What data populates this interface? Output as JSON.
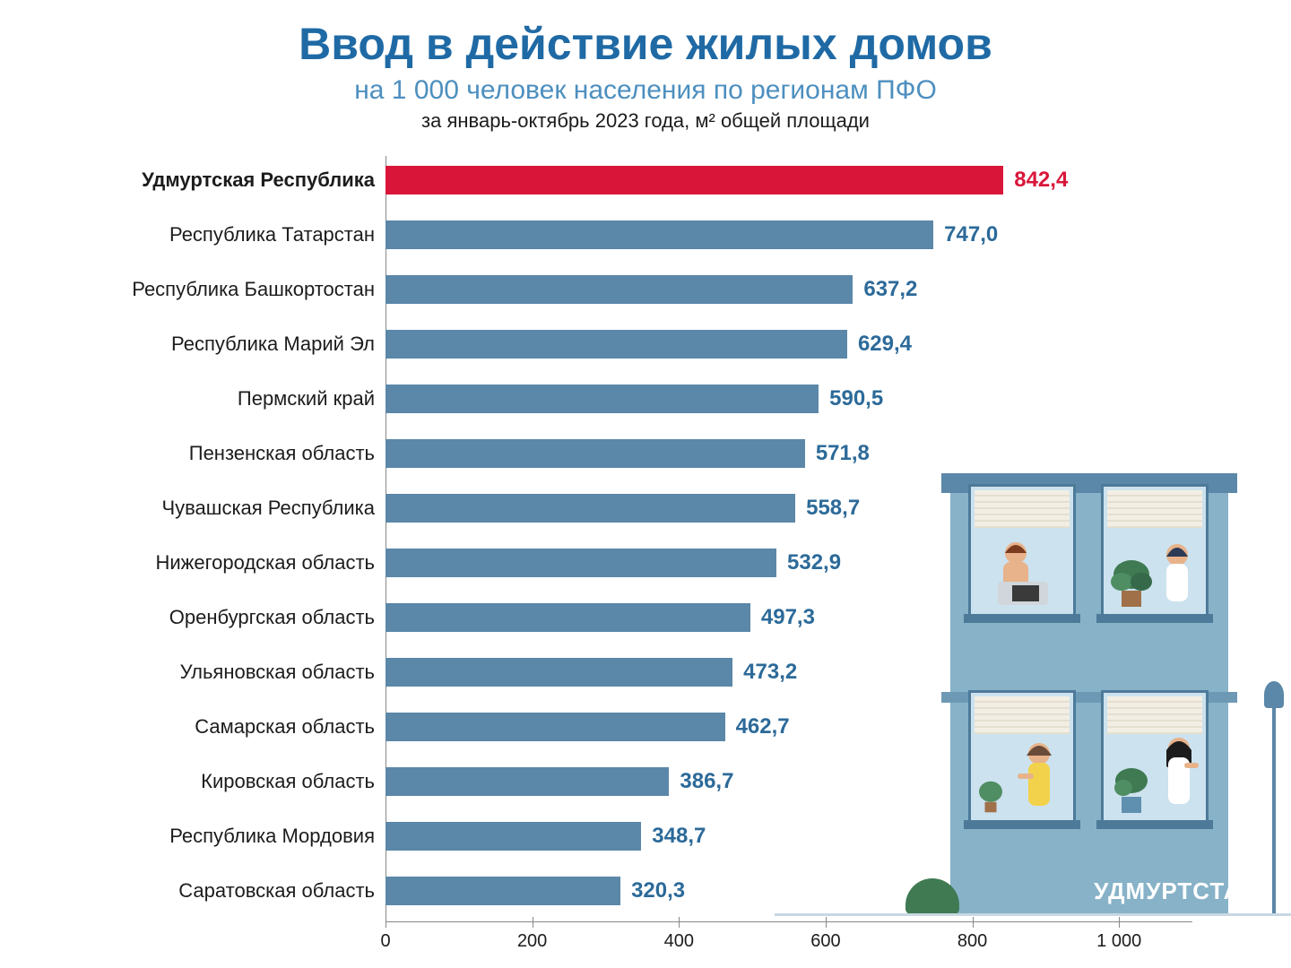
{
  "title": {
    "text": "Ввод в действие жилых домов",
    "color": "#1f6aa5",
    "fontsize": 50
  },
  "subtitle1": {
    "text": "на 1 000 человек населения по регионам ПФО",
    "color": "#4d8fbf",
    "fontsize": 30
  },
  "subtitle2": {
    "text": "за январь-октябрь 2023 года, м² общей площади",
    "color": "#1c1c1c",
    "fontsize": 22
  },
  "footer": "УДМУРТСТАТ",
  "chart": {
    "type": "bar-horizontal",
    "xmax": 1100,
    "xticks": [
      0,
      200,
      400,
      600,
      800,
      1000
    ],
    "xtick_labels": [
      "0",
      "200",
      "400",
      "600",
      "800",
      "1 000"
    ],
    "bar_color_default": "#5b87a8",
    "bar_color_highlight": "#d9163a",
    "value_color_default": "#2c6a99",
    "value_color_highlight": "#d9163a",
    "label_fontsize": 22,
    "value_fontsize": 24,
    "rows": [
      {
        "label": "Удмуртская Республика",
        "value": 842.4,
        "display": "842,4",
        "highlight": true
      },
      {
        "label": "Республика Татарстан",
        "value": 747.0,
        "display": "747,0",
        "highlight": false
      },
      {
        "label": "Республика Башкортостан",
        "value": 637.2,
        "display": "637,2",
        "highlight": false
      },
      {
        "label": "Республика Марий Эл",
        "value": 629.4,
        "display": "629,4",
        "highlight": false
      },
      {
        "label": "Пермский край",
        "value": 590.5,
        "display": "590,5",
        "highlight": false
      },
      {
        "label": "Пензенская область",
        "value": 571.8,
        "display": "571,8",
        "highlight": false
      },
      {
        "label": "Чувашская Республика",
        "value": 558.7,
        "display": "558,7",
        "highlight": false
      },
      {
        "label": "Нижегородская область",
        "value": 532.9,
        "display": "532,9",
        "highlight": false
      },
      {
        "label": "Оренбургская область",
        "value": 497.3,
        "display": "497,3",
        "highlight": false
      },
      {
        "label": "Ульяновская область",
        "value": 473.2,
        "display": "473,2",
        "highlight": false
      },
      {
        "label": "Самарская область",
        "value": 462.7,
        "display": "462,7",
        "highlight": false
      },
      {
        "label": "Кировская область",
        "value": 386.7,
        "display": "386,7",
        "highlight": false
      },
      {
        "label": "Республика Мордовия",
        "value": 348.7,
        "display": "348,7",
        "highlight": false
      },
      {
        "label": "Саратовская область",
        "value": 320.3,
        "display": "320,3",
        "highlight": false
      }
    ]
  },
  "illustration": {
    "building_color": "#87b2c8",
    "roof_color": "#5b87a8",
    "window_bg": "#cce2ee",
    "window_border": "#4d7a99",
    "plant_color": "#3f7a52"
  }
}
